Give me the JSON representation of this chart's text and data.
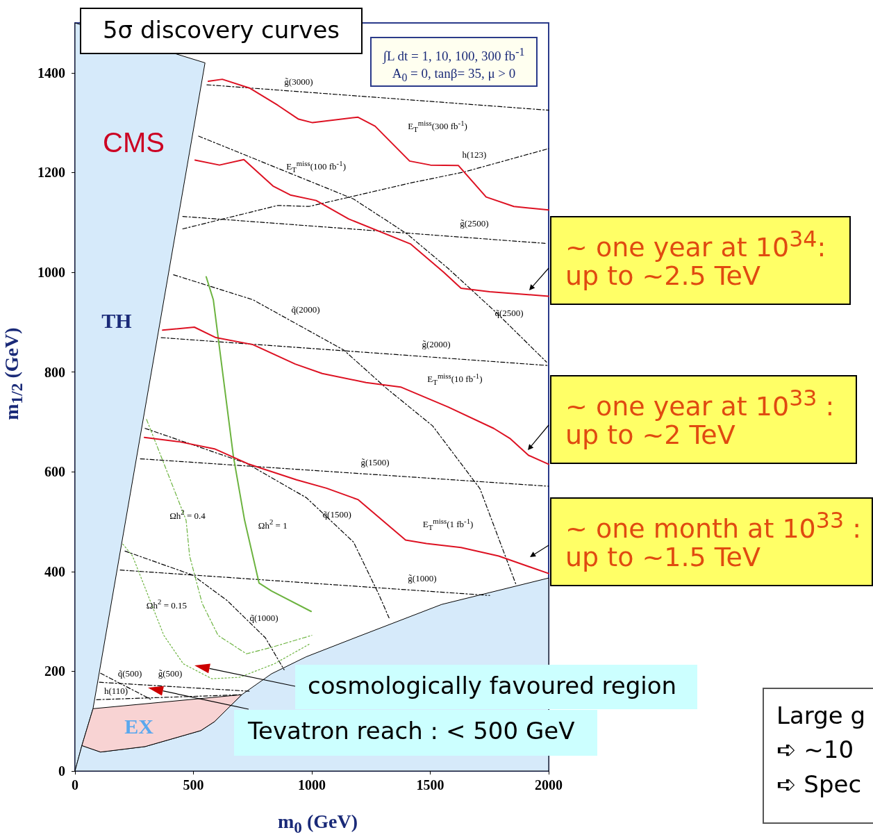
{
  "chart_data": {
    "type": "line",
    "title": "5σ discovery curves",
    "xlabel": "m$_{0}$ (GeV)",
    "ylabel": "m$_{1/2}$ (GeV)",
    "xlim": [
      0,
      2000
    ],
    "xticks": [
      0,
      500,
      1000,
      1500,
      2000
    ],
    "ylim": [
      0,
      1500
    ],
    "yticks": [
      0,
      200,
      400,
      600,
      800,
      1000,
      1200,
      1400
    ],
    "grid": false,
    "marker": "none",
    "series": [
      {
        "type": "area",
        "color": "#d6eafa",
        "x": [
          0,
          29,
          76,
          549,
          0
        ],
        "values": [
          0,
          51,
          125,
          1420,
          1500
        ]
      },
      {
        "type": "area",
        "color": "#d6eafa",
        "x": [
          0,
          29,
          108,
          296,
          531,
          589,
          704,
          830,
          976,
          1176,
          1548,
          2000,
          2000
        ],
        "values": [
          0,
          51,
          38,
          49,
          81,
          99,
          153,
          195,
          229,
          266,
          334,
          387,
          0
        ]
      },
      {
        "type": "area",
        "color": "#f8d3d3",
        "x": [
          29,
          76,
          704,
          589,
          531,
          296,
          108
        ],
        "values": [
          51,
          125,
          153,
          99,
          81,
          49,
          38
        ]
      },
      {
        "color": "#000000",
        "line_style": "dashed",
        "x": [
          557,
          2000
        ],
        "values": [
          1376,
          1325
        ]
      },
      {
        "color": "#000000",
        "line_style": "dashed",
        "x": [
          455,
          1985
        ],
        "values": [
          1112,
          1058
        ]
      },
      {
        "color": "#000000",
        "line_style": "dashed",
        "x": [
          364,
          2000
        ],
        "values": [
          869,
          813
        ]
      },
      {
        "color": "#000000",
        "line_style": "dashed",
        "x": [
          276,
          2000
        ],
        "values": [
          626,
          571
        ]
      },
      {
        "color": "#000000",
        "line_style": "dashed",
        "x": [
          191,
          1751
        ],
        "values": [
          403,
          352
        ]
      },
      {
        "color": "#000000",
        "line_style": "dashed",
        "x": [
          103,
          736
        ],
        "values": [
          178,
          160
        ]
      },
      {
        "color": "#000000",
        "line_style": "dashed",
        "x": [
          91,
          704
        ],
        "values": [
          143,
          153
        ]
      },
      {
        "color": "#000000",
        "line_style": "dashed",
        "x": [
          455,
          856,
          988,
          1416,
          1642,
          2000
        ],
        "values": [
          1087,
          1134,
          1132,
          1179,
          1201,
          1248
        ]
      },
      {
        "color": "#000000",
        "line_style": "dashed",
        "x": [
          522,
          1176,
          1402,
          1575,
          1777,
          1991
        ],
        "values": [
          1273,
          1147,
          1077,
          1008,
          920,
          820
        ]
      },
      {
        "color": "#000000",
        "line_style": "dashed",
        "x": [
          416,
          751,
          1135,
          1311,
          1510,
          1710,
          1862
        ],
        "values": [
          995,
          945,
          844,
          769,
          692,
          566,
          374
        ]
      },
      {
        "color": "#000000",
        "line_style": "dashed",
        "x": [
          296,
          724,
          977,
          1176,
          1282,
          1326
        ],
        "values": [
          687,
          617,
          548,
          459,
          355,
          307
        ]
      },
      {
        "color": "#000000",
        "line_style": "dashed",
        "x": [
          211,
          496,
          642,
          804,
          883
        ],
        "values": [
          441,
          393,
          342,
          267,
          203
        ]
      },
      {
        "color": "#000000",
        "line_style": "dashed",
        "x": [
          108,
          323
        ],
        "values": [
          196,
          143
        ]
      },
      {
        "color": "#6cb33f",
        "line_style": "solid",
        "x": [
          554,
          584,
          669,
          716,
          777,
          830,
          997
        ],
        "values": [
          991,
          945,
          630,
          503,
          377,
          361,
          320
        ]
      },
      {
        "color": "#6cb33f",
        "line_style": "dashed",
        "x": [
          302,
          375,
          469,
          484,
          537,
          604,
          724,
          830,
          1000
        ],
        "values": [
          705,
          617,
          503,
          431,
          336,
          272,
          235,
          248,
          272
        ]
      },
      {
        "color": "#6cb33f",
        "line_style": "dotted",
        "x": [
          202,
          243,
          375,
          457,
          578,
          695,
          842,
          988
        ],
        "values": [
          455,
          431,
          272,
          215,
          185,
          188,
          215,
          254
        ]
      },
      {
        "color": "#dd1122",
        "line_style": "solid",
        "x": [
          563,
          622,
          739,
          856,
          944,
          1003,
          1194,
          1267,
          1413,
          1501,
          1619,
          1736,
          1853,
          2000
        ],
        "values": [
          1383,
          1387,
          1369,
          1335,
          1307,
          1300,
          1311,
          1293,
          1223,
          1215,
          1214,
          1151,
          1132,
          1125
        ]
      },
      {
        "color": "#dd1122",
        "line_style": "solid",
        "x": [
          507,
          610,
          713,
          836,
          909,
          1018,
          1155,
          1416,
          1557,
          1630,
          1751,
          2000
        ],
        "values": [
          1225,
          1215,
          1226,
          1173,
          1155,
          1144,
          1107,
          1057,
          1000,
          968,
          961,
          952
        ]
      },
      {
        "color": "#dd1122",
        "line_style": "solid",
        "x": [
          370,
          504,
          595,
          751,
          930,
          1044,
          1229,
          1375,
          1575,
          1768,
          1836,
          1915,
          2000
        ],
        "values": [
          884,
          890,
          869,
          855,
          816,
          797,
          779,
          770,
          730,
          687,
          667,
          633,
          615
        ]
      },
      {
        "color": "#dd1122",
        "line_style": "solid",
        "x": [
          293,
          443,
          589,
          730,
          935,
          1062,
          1196,
          1396,
          1484,
          1630,
          1789,
          2000
        ],
        "values": [
          669,
          660,
          646,
          616,
          584,
          567,
          544,
          463,
          456,
          448,
          431,
          396
        ]
      }
    ],
    "annotations": [
      "g̃(3000)",
      "E$_{T}$$^{miss}$(300 fb$^{-1}$)",
      "E$_{T}$$^{miss}$(100 fb$^{-1}$)",
      "h(123)",
      "g̃(2500)",
      "q̃(2000)",
      "q̃(2500)",
      "g̃(2000)",
      "E$_{T}$$^{miss}$(10 fb$^{-1}$)",
      "g̃(1500)",
      "q̃(1500)",
      "E$_{T}$$^{miss}$(1 fb$^{-1}$)",
      "g̃(1000)",
      "q̃(1000)",
      "g̃(500)",
      "q̃(500)",
      "h(110)",
      "Ωh$^{2}$ = 0.4",
      "Ωh$^{2}$ = 1",
      "Ωh$^{2}$ = 0.15",
      "TH",
      "EX",
      "CMS",
      "∫L dt = 1, 10, 100, 300 fb$^{-1}$\nA$_{0}$ = 0, tanβ= 35, μ > 0",
      "~ one year at 10$^{34}$:\nup to ~2.5 TeV",
      "~ one year at 10$^{33}$ :\nup to ~2 TeV",
      "~ one month at 10$^{33}$ :\nup to ~1.5 TeV",
      "cosmologically favoured region",
      "Tevatron reach : < 500 GeV",
      "Large g\n➪ ~10\n➪ Spec"
    ]
  }
}
